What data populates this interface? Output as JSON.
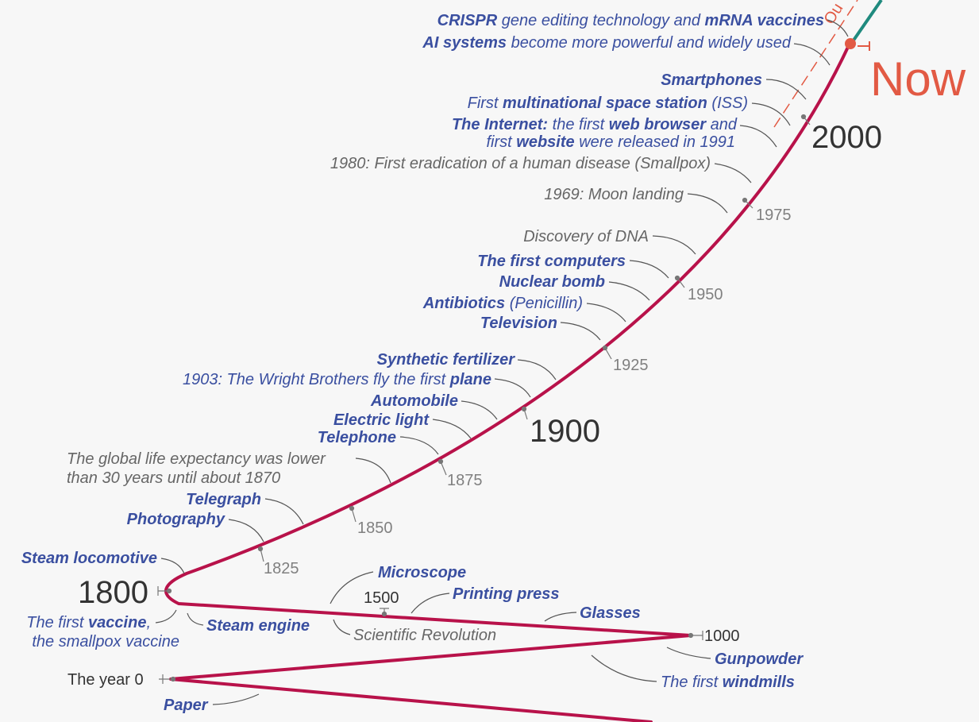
{
  "colors": {
    "curve": "#b8124a",
    "future_line": "#1f8a7e",
    "now_accent": "#e25a44",
    "blue_event": "#3a4fa0",
    "gray_event": "#666666",
    "background": "#f7f7f7"
  },
  "labels": {
    "now": "Now",
    "outlook_fragment": "Ou",
    "year_2000": "2000",
    "year_1975": "1975",
    "year_1950": "1950",
    "year_1925": "1925",
    "year_1900": "1900",
    "year_1875": "1875",
    "year_1850": "1850",
    "year_1825": "1825",
    "year_1800": "1800",
    "year_1500": "1500",
    "year_1000": "1000",
    "year_0": "The year 0"
  },
  "events": {
    "crispr": {
      "b1": "CRISPR",
      "t1": " gene editing technology and ",
      "b2": "mRNA vaccines"
    },
    "ai": {
      "b1": "AI systems",
      "t1": " become more powerful and widely used"
    },
    "smartphones": {
      "b1": "Smartphones"
    },
    "iss": {
      "t1": "First ",
      "b1": "multinational space station",
      "t2": " (ISS)"
    },
    "internet_1": {
      "b1": "The Internet:",
      "t1": " the first ",
      "b2": "web browser",
      "t2": " and"
    },
    "internet_2": {
      "t1": "first ",
      "b1": "website",
      "t2": " were released in 1991"
    },
    "smallpox": {
      "t1": "1980: First eradication of a human disease (Smallpox)"
    },
    "moon": {
      "t1": "1969: Moon landing"
    },
    "dna": {
      "t1": "Discovery of DNA"
    },
    "computers": {
      "b1": "The first computers"
    },
    "nuclear": {
      "b1": "Nuclear bomb"
    },
    "antibiotics": {
      "b1": "Antibiotics",
      "t1": " (Penicillin)"
    },
    "television": {
      "b1": "Television"
    },
    "fertilizer": {
      "b1": "Synthetic fertilizer"
    },
    "plane": {
      "t1": "1903: The Wright Brothers fly the first ",
      "b1": "plane"
    },
    "automobile": {
      "b1": "Automobile"
    },
    "electric_light": {
      "b1": "Electric light"
    },
    "telephone": {
      "b1": "Telephone"
    },
    "life_expectancy_1": {
      "t1": "The global life expectancy was lower"
    },
    "life_expectancy_2": {
      "t1": "than 30 years until about 1870"
    },
    "telegraph": {
      "b1": "Telegraph"
    },
    "photography": {
      "b1": "Photography"
    },
    "steam_locomotive": {
      "b1": "Steam locomotive"
    },
    "vaccine_1": {
      "t1": "The first ",
      "b1": "vaccine",
      "t2": ","
    },
    "vaccine_2": {
      "t1": "the smallpox vaccine"
    },
    "steam_engine": {
      "b1": "Steam engine"
    },
    "microscope": {
      "b1": "Microscope"
    },
    "printing_press": {
      "b1": "Printing press"
    },
    "glasses": {
      "b1": "Glasses"
    },
    "scientific_revolution": {
      "t1": "Scientific Revolution"
    },
    "gunpowder": {
      "b1": "Gunpowder"
    },
    "windmills": {
      "t1": "The first ",
      "b1": "windmills"
    },
    "paper": {
      "b1": "Paper"
    }
  }
}
